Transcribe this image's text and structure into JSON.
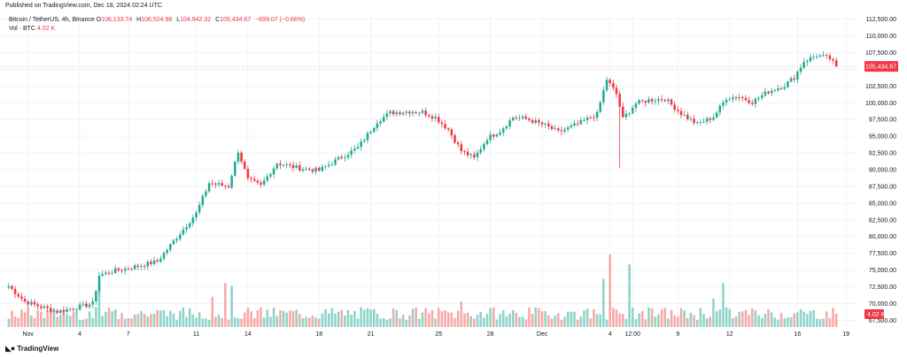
{
  "header": {
    "published": "Published on TradingView.com, Dec 18, 2024 02:24 UTC"
  },
  "legend": {
    "symbol": "Bitcoin / TetherUS, 4h, Binance",
    "o_label": "O",
    "o_value": "106,133.74",
    "h_label": "H",
    "h_value": "106,524.98",
    "l_label": "L",
    "l_value": "104,942.32",
    "c_label": "C",
    "c_value": "105,434.67",
    "change": "−699.07 (−0.66%)",
    "vol_label": "Vol · BTC",
    "vol_value": "4.02 K"
  },
  "footer": {
    "brand": "TradingView",
    "brand_icon": "tradingview-logo-icon"
  },
  "colors": {
    "up": "#22ab94",
    "down": "#f23645",
    "vol_up": "#8fd3c8",
    "vol_down": "#f7a9a7",
    "grid": "#f0f3fa"
  },
  "chart_data": {
    "type": "candlestick",
    "title": "Bitcoin / TetherUS, 4h, Binance",
    "ylim": [
      66500,
      113500
    ],
    "y_ticks": [
      "112,500.00",
      "110,000.00",
      "107,500.00",
      "105,000.00",
      "102,500.00",
      "100,000.00",
      "97,500.00",
      "95,000.00",
      "92,500.00",
      "90,000.00",
      "87,500.00",
      "85,000.00",
      "82,500.00",
      "80,000.00",
      "77,500.00",
      "75,000.00",
      "72,500.00",
      "70,000.00",
      "67,500.00"
    ],
    "y_tick_values": [
      112500,
      110000,
      107500,
      105000,
      102500,
      100000,
      97500,
      95000,
      92500,
      90000,
      87500,
      85000,
      82500,
      80000,
      77500,
      75000,
      72500,
      70000,
      67500
    ],
    "x_ticks": [
      "Nov",
      "4",
      "7",
      "11",
      "14",
      "18",
      "21",
      "25",
      "28",
      "Dec",
      "4",
      "12:00",
      "9",
      "12",
      "16",
      "19"
    ],
    "x_tick_bars": [
      6,
      22,
      37,
      58,
      74,
      96,
      112,
      133,
      149,
      165,
      186,
      193,
      207,
      223,
      244,
      259
    ],
    "last_price_label": "105,434.67",
    "last_price": 105434.67,
    "volume_label": "4.02 K",
    "keypoints": [
      [
        0,
        72600
      ],
      [
        5,
        70300
      ],
      [
        10,
        69500
      ],
      [
        15,
        68800
      ],
      [
        20,
        69300
      ],
      [
        26,
        70000
      ],
      [
        28,
        74200
      ],
      [
        32,
        74800
      ],
      [
        40,
        75600
      ],
      [
        46,
        76300
      ],
      [
        53,
        80500
      ],
      [
        58,
        83500
      ],
      [
        62,
        88000
      ],
      [
        68,
        87500
      ],
      [
        71,
        92800
      ],
      [
        74,
        88500
      ],
      [
        78,
        87600
      ],
      [
        83,
        91000
      ],
      [
        90,
        90200
      ],
      [
        96,
        89900
      ],
      [
        102,
        91600
      ],
      [
        108,
        93300
      ],
      [
        114,
        97200
      ],
      [
        118,
        98500
      ],
      [
        124,
        98700
      ],
      [
        128,
        98600
      ],
      [
        132,
        97800
      ],
      [
        136,
        96000
      ],
      [
        140,
        92800
      ],
      [
        144,
        91700
      ],
      [
        148,
        94700
      ],
      [
        152,
        95800
      ],
      [
        156,
        97800
      ],
      [
        160,
        97600
      ],
      [
        166,
        96600
      ],
      [
        170,
        95600
      ],
      [
        176,
        96800
      ],
      [
        182,
        98300
      ],
      [
        185,
        103500
      ],
      [
        188,
        101300
      ],
      [
        190,
        97600
      ],
      [
        194,
        99900
      ],
      [
        198,
        100400
      ],
      [
        203,
        100600
      ],
      [
        208,
        98400
      ],
      [
        213,
        96800
      ],
      [
        218,
        97900
      ],
      [
        222,
        100700
      ],
      [
        226,
        100900
      ],
      [
        230,
        100100
      ],
      [
        235,
        101700
      ],
      [
        240,
        102600
      ],
      [
        243,
        103800
      ],
      [
        246,
        106200
      ],
      [
        250,
        107100
      ],
      [
        254,
        106600
      ],
      [
        256,
        105434.67
      ]
    ],
    "volume_max": 2800,
    "volume_spikes": {
      "28": 1500,
      "33": 620,
      "63": 1050,
      "67": 1550,
      "69": 1450,
      "140": 900,
      "184": 1700,
      "186": 2550,
      "192": 2200,
      "221": 1550,
      "218": 1000
    }
  }
}
